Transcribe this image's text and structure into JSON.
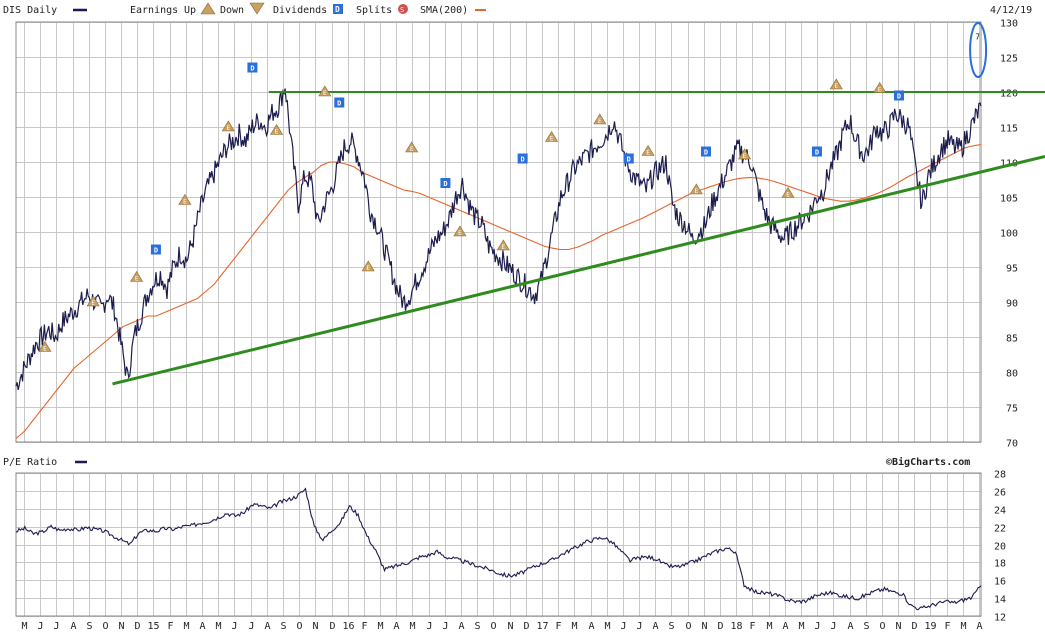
{
  "header": {
    "ticker_label": "DIS Daily",
    "earnings_label": "Earnings",
    "up_label": "Up",
    "down_label": "Down",
    "dividends_label": "Dividends",
    "splits_label": "Splits",
    "sma_label": "SMA(200)",
    "date": "4/12/19",
    "watermark": "©BigCharts.com",
    "pe_label": "P/E Ratio"
  },
  "colors": {
    "price": "#1c1c4e",
    "sma": "#e8642a",
    "trend": "#2e8b1e",
    "dividend": "#2a6fdb",
    "earnings_up": "#c8a060",
    "earnings_down": "#c8a060",
    "split": "#d05050",
    "highlight": "#2a6fdb"
  },
  "chart_data": [
    {
      "type": "line",
      "title": "DIS Daily",
      "ylim": [
        70,
        130
      ],
      "y_ticks": [
        "130",
        "125",
        "120",
        "115",
        "110",
        "105",
        "100",
        "95",
        "90",
        "85",
        "80",
        "75",
        "70"
      ],
      "x_ticks": [
        "M",
        "J",
        "J",
        "A",
        "S",
        "O",
        "N",
        "D",
        "15",
        "F",
        "M",
        "A",
        "M",
        "J",
        "J",
        "A",
        "S",
        "O",
        "N",
        "D",
        "16",
        "F",
        "M",
        "A",
        "M",
        "J",
        "J",
        "A",
        "S",
        "O",
        "N",
        "D",
        "17",
        "F",
        "M",
        "A",
        "M",
        "J",
        "J",
        "A",
        "S",
        "O",
        "N",
        "D",
        "18",
        "F",
        "M",
        "A",
        "M",
        "J",
        "J",
        "A",
        "S",
        "O",
        "N",
        "D",
        "19",
        "F",
        "M",
        "A"
      ],
      "series": [
        {
          "name": "DIS Daily",
          "values": [
            78,
            80,
            82,
            84,
            85,
            86,
            85,
            87,
            88,
            89,
            90,
            91,
            90,
            89,
            91,
            89,
            84,
            79,
            85,
            88,
            91,
            93,
            94,
            92,
            95,
            97,
            96,
            99,
            103,
            106,
            108,
            110,
            112,
            113,
            114,
            113,
            115,
            116,
            115,
            117,
            118,
            121,
            112,
            104,
            108,
            107,
            101,
            104,
            106,
            109,
            112,
            113,
            111,
            108,
            103,
            101,
            98,
            95,
            92,
            90,
            91,
            93,
            95,
            97,
            99,
            100,
            102,
            105,
            107,
            104,
            102,
            101,
            98,
            97,
            96,
            95,
            94,
            93,
            92,
            91,
            93,
            97,
            101,
            105,
            107,
            109,
            110,
            111,
            112,
            113,
            114,
            116,
            113,
            110,
            108,
            107,
            106,
            108,
            109,
            110,
            104,
            102,
            101,
            99,
            100,
            101,
            104,
            106,
            108,
            110,
            112,
            111,
            110,
            106,
            103,
            101,
            100,
            99,
            100,
            101,
            102,
            103,
            105,
            106,
            109,
            111,
            114,
            116,
            113,
            111,
            112,
            115,
            114,
            115,
            117,
            116,
            115,
            109,
            104,
            108,
            110,
            112,
            113,
            112,
            112,
            114,
            116,
            118
          ]
        },
        {
          "name": "SMA(200)",
          "values": [
            70.5,
            71.5,
            73,
            74.5,
            76,
            77.5,
            79,
            80.5,
            81.5,
            82.5,
            83.5,
            84.5,
            85.5,
            86.5,
            87,
            87.5,
            88,
            88,
            88.5,
            89,
            89.5,
            90,
            90.5,
            91.5,
            92.5,
            94,
            95.5,
            97,
            98.5,
            100,
            101.5,
            103,
            104.5,
            106,
            107,
            107.8,
            108.5,
            109.5,
            110,
            110,
            109.7,
            109.3,
            108.5,
            108,
            107.5,
            107,
            106.5,
            106,
            105.8,
            105.5,
            105,
            104.5,
            104,
            103.5,
            103,
            102.5,
            102,
            101.5,
            101,
            100.5,
            100,
            99.5,
            99,
            98.5,
            98,
            97.7,
            97.5,
            97.5,
            97.8,
            98.3,
            98.8,
            99.5,
            100,
            100.5,
            101,
            101.5,
            102,
            102.6,
            103.2,
            103.8,
            104.4,
            105,
            105.6,
            106,
            106.4,
            106.8,
            107.2,
            107.5,
            107.7,
            107.8,
            107.7,
            107.5,
            107.2,
            106.8,
            106.4,
            106,
            105.6,
            105.2,
            104.8,
            104.6,
            104.4,
            104.4,
            104.6,
            104.9,
            105.3,
            105.8,
            106.4,
            107.1,
            107.8,
            108.4,
            109,
            109.6,
            110.2,
            110.8,
            111.4,
            112,
            112.3,
            112.5
          ]
        },
        {
          "name": "trendline_lower",
          "points": [
            {
              "x": "2014-11",
              "y": 78.3
            },
            {
              "x": "2019-04",
              "y": 107.3
            },
            {
              "x": "end",
              "y": 110.8
            }
          ]
        },
        {
          "name": "resistance",
          "points": [
            {
              "x": "2015-08",
              "y": 120
            },
            {
              "x": "end",
              "y": 120
            }
          ]
        }
      ],
      "markers": {
        "dividends": [
          {
            "label": "D",
            "t": 0.145,
            "y": 97.5
          },
          {
            "label": "D",
            "t": 0.245,
            "y": 123.5
          },
          {
            "label": "D",
            "t": 0.335,
            "y": 118.5
          },
          {
            "label": "D",
            "t": 0.445,
            "y": 107
          },
          {
            "label": "D",
            "t": 0.525,
            "y": 110.5
          },
          {
            "label": "D",
            "t": 0.635,
            "y": 110.5
          },
          {
            "label": "D",
            "t": 0.715,
            "y": 111.5
          },
          {
            "label": "D",
            "t": 0.83,
            "y": 111.5
          },
          {
            "label": "D",
            "t": 0.915,
            "y": 119.5
          }
        ],
        "earnings": [
          {
            "label": "E",
            "t": 0.03,
            "y": 83.5
          },
          {
            "label": "E",
            "t": 0.08,
            "y": 90
          },
          {
            "label": "E",
            "t": 0.125,
            "y": 93.5
          },
          {
            "label": "E",
            "t": 0.175,
            "y": 104.5
          },
          {
            "label": "E",
            "t": 0.22,
            "y": 115
          },
          {
            "label": "E",
            "t": 0.27,
            "y": 114.5
          },
          {
            "label": "E",
            "t": 0.32,
            "y": 120
          },
          {
            "label": "E",
            "t": 0.41,
            "y": 112
          },
          {
            "label": "E",
            "t": 0.46,
            "y": 100
          },
          {
            "label": "E",
            "t": 0.365,
            "y": 95
          },
          {
            "label": "E",
            "t": 0.505,
            "y": 98
          },
          {
            "label": "E",
            "t": 0.555,
            "y": 113.5
          },
          {
            "label": "E",
            "t": 0.605,
            "y": 116
          },
          {
            "label": "E",
            "t": 0.655,
            "y": 111.5
          },
          {
            "label": "E",
            "t": 0.705,
            "y": 106
          },
          {
            "label": "E",
            "t": 0.755,
            "y": 111
          },
          {
            "label": "E",
            "t": 0.8,
            "y": 105.5
          },
          {
            "label": "E",
            "t": 0.85,
            "y": 121
          },
          {
            "label": "E",
            "t": 0.895,
            "y": 120.5
          }
        ]
      },
      "highlight_label": "7",
      "grid": true
    },
    {
      "type": "line",
      "title": "P/E Ratio",
      "ylim": [
        12,
        28
      ],
      "y_ticks": [
        "28",
        "26",
        "24",
        "22",
        "20",
        "18",
        "16",
        "14",
        "12"
      ],
      "series": [
        {
          "name": "P/E Ratio",
          "values": [
            21.5,
            21.8,
            21.2,
            21.4,
            22,
            21.6,
            21.8,
            21.6,
            21.9,
            21.7,
            21.5,
            21,
            20.5,
            20,
            21.3,
            21.6,
            21.5,
            21.8,
            21.7,
            22,
            22.1,
            22.4,
            22.6,
            23,
            23.5,
            23.2,
            23.6,
            24.5,
            24.3,
            24,
            24.7,
            25,
            25.4,
            26.2,
            22,
            20.5,
            21.6,
            22.5,
            24.3,
            23.3,
            21,
            19.3,
            17.2,
            17.5,
            17.8,
            18.1,
            18.6,
            18.8,
            19.2,
            18.6,
            18.4,
            18.1,
            17.8,
            17.5,
            17.2,
            16.8,
            16.5,
            16.6,
            17,
            17.5,
            17.9,
            18.2,
            18.8,
            19.3,
            19.8,
            20.3,
            20.6,
            20.8,
            20.2,
            19.2,
            18.2,
            18.5,
            18.6,
            18.4,
            17.7,
            17.5,
            17.6,
            18,
            18.4,
            18.9,
            19.3,
            19.6,
            19.2,
            15.5,
            14.8,
            14.6,
            14.5,
            14.2,
            13.8,
            13.6,
            13.7,
            14.2,
            14.5,
            14.6,
            14.3,
            14.1,
            14,
            14.4,
            14.8,
            15,
            14.7,
            14.5,
            13.2,
            12.8,
            13.1,
            13.4,
            13.6,
            13.5,
            13.8,
            14.1,
            15.4
          ]
        }
      ],
      "grid": true
    }
  ]
}
